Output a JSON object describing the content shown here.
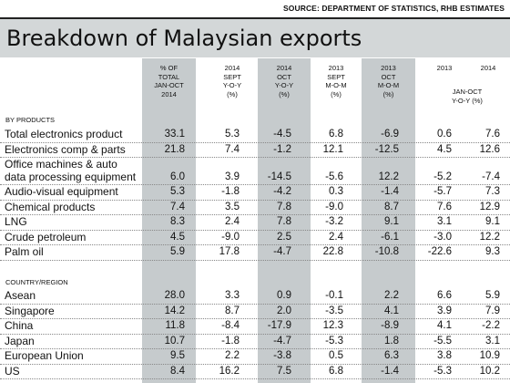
{
  "source": "SOURCE: DEPARTMENT OF STATISTICS, RHB ESTIMATES",
  "title": "Breakdown of Malaysian exports",
  "columns": [
    [
      "% OF",
      "TOTAL",
      "JAN-OCT",
      "2014"
    ],
    [
      "2014",
      "SEPT",
      "Y-O-Y",
      "(%)"
    ],
    [
      "2014",
      "OCT",
      "Y-O-Y",
      "(%)"
    ],
    [
      "2013",
      "SEPT",
      "M-O-M",
      "(%)"
    ],
    [
      "2013",
      "OCT",
      "M-O-M",
      "(%)"
    ]
  ],
  "jan_oct_header": {
    "year_2013": "2013",
    "year_2014": "2014",
    "line1": "JAN-OCT",
    "line2": "Y-O-Y (%)"
  },
  "sections": [
    {
      "label": "BY PRODUCTS",
      "rows": [
        {
          "name": "Total electronics product",
          "values": [
            "33.1",
            "5.3",
            "-4.5",
            "6.8",
            "-6.9",
            "0.6",
            "7.6"
          ]
        },
        {
          "name": "Electronics comp & parts",
          "values": [
            "21.8",
            "7.4",
            "-1.2",
            "12.1",
            "-12.5",
            "4.5",
            "12.6"
          ]
        },
        {
          "name": "Office machines & auto",
          "name2": "data processing equipment",
          "values": [
            "6.0",
            "3.9",
            "-14.5",
            "-5.6",
            "12.2",
            "-5.2",
            "-7.4"
          ]
        },
        {
          "name": "Audio-visual equipment",
          "values": [
            "5.3",
            "-1.8",
            "-4.2",
            "0.3",
            "-1.4",
            "-5.7",
            "7.3"
          ]
        },
        {
          "name": "Chemical products",
          "values": [
            "7.4",
            "3.5",
            "7.8",
            "-9.0",
            "8.7",
            "7.6",
            "12.9"
          ]
        },
        {
          "name": "LNG",
          "values": [
            "8.3",
            "2.4",
            "7.8",
            "-3.2",
            "9.1",
            "3.1",
            "9.1"
          ]
        },
        {
          "name": "Crude petroleum",
          "values": [
            "4.5",
            "-9.0",
            "2.5",
            "2.4",
            "-6.1",
            "-3.0",
            "12.2"
          ]
        },
        {
          "name": "Palm oil",
          "values": [
            "5.9",
            "17.8",
            "-4.7",
            "22.8",
            "-10.8",
            "-22.6",
            "9.3"
          ]
        }
      ]
    },
    {
      "label": "COUNTRY/REGION",
      "rows": [
        {
          "name": "Asean",
          "values": [
            "28.0",
            "3.3",
            "0.9",
            "-0.1",
            "2.2",
            "6.6",
            "5.9"
          ]
        },
        {
          "name": "Singapore",
          "values": [
            "14.2",
            "8.7",
            "2.0",
            "-3.5",
            "4.1",
            "3.9",
            "7.9"
          ]
        },
        {
          "name": "China",
          "values": [
            "11.8",
            "-8.4",
            "-17.9",
            "12.3",
            "-8.9",
            "4.1",
            "-2.2"
          ]
        },
        {
          "name": "Japan",
          "values": [
            "10.7",
            "-1.8",
            "-4.7",
            "-5.3",
            "1.8",
            "-5.5",
            "3.1"
          ]
        },
        {
          "name": "European Union",
          "values": [
            "9.5",
            "2.2",
            "-3.8",
            "0.5",
            "6.3",
            "3.8",
            "10.9"
          ]
        },
        {
          "name": "US",
          "values": [
            "8.4",
            "16.2",
            "7.5",
            "6.8",
            "-1.4",
            "-5.3",
            "10.2"
          ]
        }
      ]
    }
  ]
}
